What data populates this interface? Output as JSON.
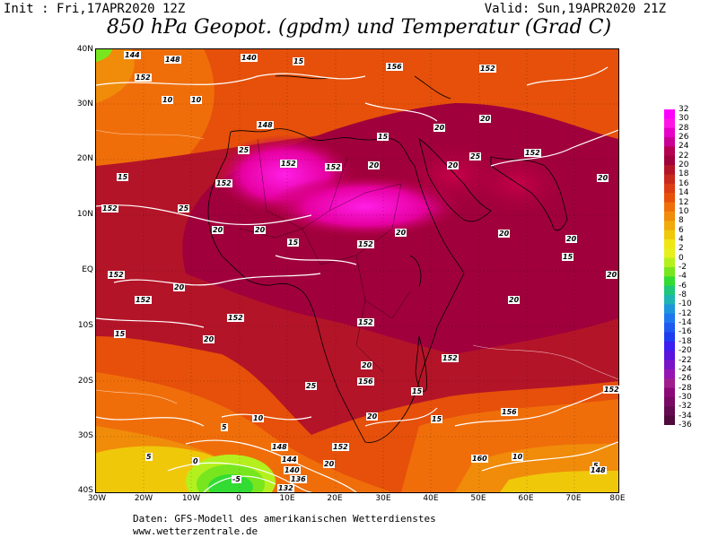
{
  "header": {
    "init": "Init : Fri,17APR2020 12Z",
    "valid": "Valid: Sun,19APR2020 21Z",
    "title": "850 hPa Geopot. (gpdm) und Temperatur (Grad C)"
  },
  "axes": {
    "lat_labels": [
      "40N",
      "30N",
      "20N",
      "10N",
      "EQ",
      "10S",
      "20S",
      "30S",
      "40S"
    ],
    "lon_labels": [
      "30W",
      "20W",
      "10W",
      "0",
      "10E",
      "20E",
      "30E",
      "40E",
      "50E",
      "60E",
      "70E",
      "80E"
    ]
  },
  "colorbar": {
    "labels": [
      "32",
      "30",
      "28",
      "26",
      "24",
      "22",
      "20",
      "18",
      "16",
      "14",
      "12",
      "10",
      "8",
      "6",
      "4",
      "2",
      "0",
      "-2",
      "-4",
      "-6",
      "-8",
      "-10",
      "-12",
      "-14",
      "-16",
      "-18",
      "-20",
      "-22",
      "-24",
      "-26",
      "-28",
      "-30",
      "-32",
      "-34",
      "-36"
    ],
    "colors": [
      "#ff00ff",
      "#ff14e6",
      "#e600c8",
      "#c80096",
      "#b40050",
      "#a0003c",
      "#b41428",
      "#c8281e",
      "#dc3c14",
      "#e6500a",
      "#f06e0a",
      "#f08c0a",
      "#f0aa0a",
      "#f0c80a",
      "#f0e614",
      "#e6f01e",
      "#b4f01e",
      "#78e61e",
      "#32dc32",
      "#1ec878",
      "#1eb4b4",
      "#1e96dc",
      "#1e78f0",
      "#1e5af0",
      "#1e3cf0",
      "#3c1ef0",
      "#5a14dc",
      "#7814c8",
      "#9614b4",
      "#a01e8c",
      "#8c0a78",
      "#780a64",
      "#640a50",
      "#500a3c"
    ]
  },
  "contour_labels": [
    {
      "t": "144"
    },
    {
      "t": "148"
    },
    {
      "t": "152"
    },
    {
      "t": "140"
    },
    {
      "t": "15"
    },
    {
      "t": "10"
    },
    {
      "t": "156"
    },
    {
      "t": "152"
    },
    {
      "t": "148"
    },
    {
      "t": "20"
    },
    {
      "t": "25"
    },
    {
      "t": "152"
    },
    {
      "t": "15"
    },
    {
      "t": "20"
    },
    {
      "t": "152"
    },
    {
      "t": "20"
    },
    {
      "t": "25"
    },
    {
      "t": "20"
    },
    {
      "t": "152"
    },
    {
      "t": "15"
    },
    {
      "t": "10"
    },
    {
      "t": "20"
    },
    {
      "t": "152"
    },
    {
      "t": "25"
    },
    {
      "t": "20"
    },
    {
      "t": "20"
    },
    {
      "t": "152"
    },
    {
      "t": "20"
    },
    {
      "t": "15"
    },
    {
      "t": "20"
    },
    {
      "t": "152"
    },
    {
      "t": "20"
    },
    {
      "t": "15"
    },
    {
      "t": "152"
    },
    {
      "t": "20"
    },
    {
      "t": "20"
    },
    {
      "t": "20"
    },
    {
      "t": "152"
    },
    {
      "t": "152"
    },
    {
      "t": "15"
    },
    {
      "t": "152"
    },
    {
      "t": "20"
    },
    {
      "t": "20"
    },
    {
      "t": "25"
    },
    {
      "t": "156"
    },
    {
      "t": "15"
    },
    {
      "t": "20"
    },
    {
      "t": "152"
    },
    {
      "t": "10"
    },
    {
      "t": "5"
    },
    {
      "t": "148"
    },
    {
      "t": "144"
    },
    {
      "t": "140"
    },
    {
      "t": "136"
    },
    {
      "t": "132"
    },
    {
      "t": "-5"
    },
    {
      "t": "0"
    },
    {
      "t": "5"
    },
    {
      "t": "152"
    },
    {
      "t": "20"
    },
    {
      "t": "15"
    },
    {
      "t": "156"
    },
    {
      "t": "160"
    },
    {
      "t": "10"
    },
    {
      "t": "5"
    },
    {
      "t": "148"
    },
    {
      "t": "152"
    }
  ],
  "footer": {
    "line1": "Daten: GFS-Modell des amerikanischen Wetterdienstes",
    "line2": "www.wetterzentrale.de"
  }
}
